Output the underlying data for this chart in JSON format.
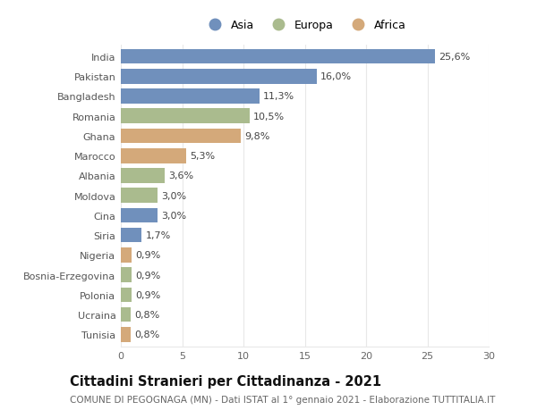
{
  "categories": [
    "India",
    "Pakistan",
    "Bangladesh",
    "Romania",
    "Ghana",
    "Marocco",
    "Albania",
    "Moldova",
    "Cina",
    "Siria",
    "Nigeria",
    "Bosnia-Erzegovina",
    "Polonia",
    "Ucraina",
    "Tunisia"
  ],
  "values": [
    25.6,
    16.0,
    11.3,
    10.5,
    9.8,
    5.3,
    3.6,
    3.0,
    3.0,
    1.7,
    0.9,
    0.9,
    0.9,
    0.8,
    0.8
  ],
  "labels": [
    "25,6%",
    "16,0%",
    "11,3%",
    "10,5%",
    "9,8%",
    "5,3%",
    "3,6%",
    "3,0%",
    "3,0%",
    "1,7%",
    "0,9%",
    "0,9%",
    "0,9%",
    "0,8%",
    "0,8%"
  ],
  "continents": [
    "Asia",
    "Asia",
    "Asia",
    "Europa",
    "Africa",
    "Africa",
    "Europa",
    "Europa",
    "Asia",
    "Asia",
    "Africa",
    "Europa",
    "Europa",
    "Europa",
    "Africa"
  ],
  "colors": {
    "Asia": "#7090bc",
    "Europa": "#aabb8e",
    "Africa": "#d4a97a"
  },
  "xlim": [
    0,
    30
  ],
  "xticks": [
    0,
    5,
    10,
    15,
    20,
    25,
    30
  ],
  "title": "Cittadini Stranieri per Cittadinanza - 2021",
  "subtitle": "COMUNE DI PEGOGNAGA (MN) - Dati ISTAT al 1° gennaio 2021 - Elaborazione TUTTITALIA.IT",
  "background_color": "#ffffff",
  "grid_color": "#e8e8e8",
  "bar_height": 0.75,
  "label_fontsize": 8.0,
  "tick_fontsize": 8.0,
  "title_fontsize": 10.5,
  "subtitle_fontsize": 7.5
}
